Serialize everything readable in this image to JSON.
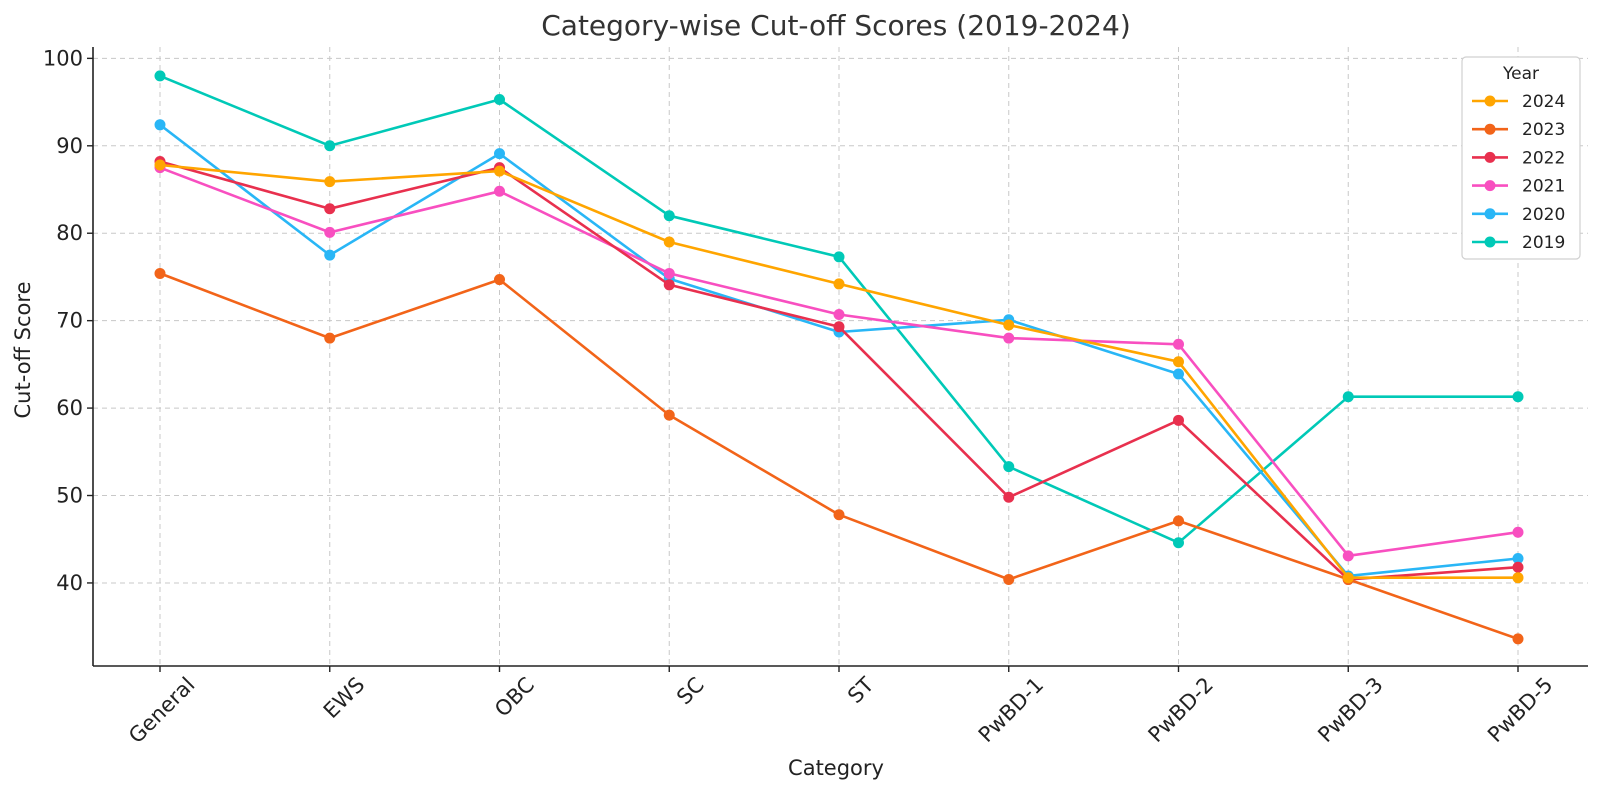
{
  "chart_data": {
    "type": "line",
    "title": "Category-wise Cut-off Scores (2019-2024)",
    "xlabel": "Category",
    "ylabel": "Cut-off Score",
    "categories": [
      "General",
      "EWS",
      "OBC",
      "SC",
      "ST",
      "PwBD-1",
      "PwBD-2",
      "PwBD-3",
      "PwBD-5"
    ],
    "ylim": [
      30.5,
      101.3
    ],
    "yticks": [
      "40",
      "50",
      "60",
      "70",
      "80",
      "90",
      "100"
    ],
    "grid": true,
    "legend": {
      "title": "Year",
      "placement": "top-right"
    },
    "series": [
      {
        "name": "2024",
        "color": "#FFA500",
        "values": [
          87.8,
          85.9,
          87.1,
          79.0,
          74.2,
          69.5,
          65.3,
          40.6,
          40.6
        ]
      },
      {
        "name": "2023",
        "color": "#F26419",
        "values": [
          75.4,
          68.0,
          74.7,
          59.2,
          47.8,
          40.4,
          47.1,
          40.4,
          33.6
        ]
      },
      {
        "name": "2022",
        "color": "#E8304E",
        "values": [
          88.2,
          82.8,
          87.5,
          74.1,
          69.3,
          49.8,
          58.6,
          40.4,
          41.8
        ]
      },
      {
        "name": "2021",
        "color": "#F84FC0",
        "values": [
          87.5,
          80.1,
          84.8,
          75.4,
          70.7,
          68.0,
          67.3,
          43.1,
          45.8
        ]
      },
      {
        "name": "2020",
        "color": "#29B6F6",
        "values": [
          92.4,
          77.5,
          89.1,
          74.8,
          68.7,
          70.1,
          63.9,
          40.8,
          42.8
        ]
      },
      {
        "name": "2019",
        "color": "#00C9B7",
        "values": [
          98.0,
          90.0,
          95.3,
          82.0,
          77.3,
          53.3,
          44.6,
          61.3,
          61.3
        ]
      }
    ]
  }
}
